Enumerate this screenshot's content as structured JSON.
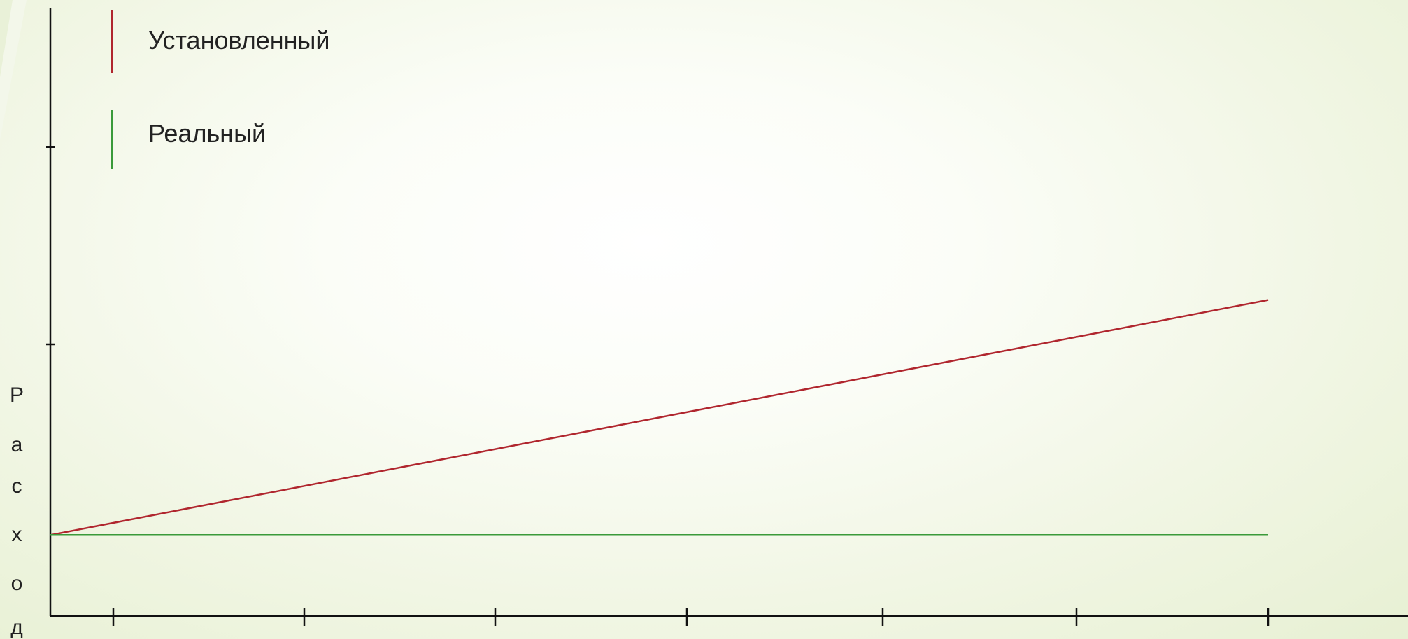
{
  "chart_data": {
    "type": "line",
    "title": "",
    "xlabel": "",
    "ylabel": "Расход",
    "grid": false,
    "legend_position": "top-left",
    "x": [
      0,
      6
    ],
    "xlim": [
      0,
      6
    ],
    "ylim": [
      0,
      3
    ],
    "series": [
      {
        "name": "Установленный",
        "color": "#b0262e",
        "values": [
          0.4,
          1.56
        ]
      },
      {
        "name": "Реальный",
        "color": "#3a9a3a",
        "values": [
          0.4,
          0.4
        ]
      }
    ]
  },
  "legend": {
    "items": [
      {
        "label": "Установленный",
        "color": "#b0262e"
      },
      {
        "label": "Реальный",
        "color": "#3a9a3a"
      }
    ]
  },
  "y_axis_label_letters": [
    "Р",
    "а",
    "с",
    "х",
    "о",
    "д"
  ]
}
